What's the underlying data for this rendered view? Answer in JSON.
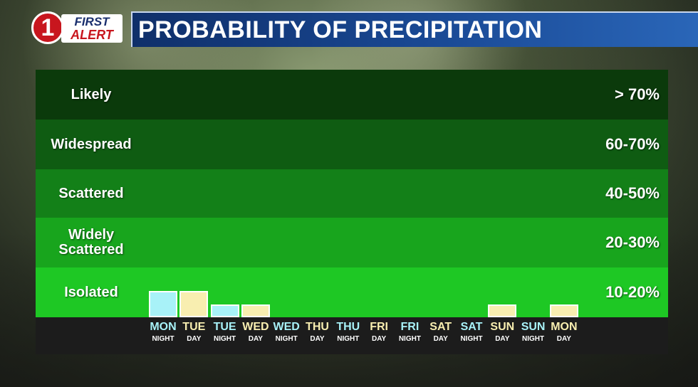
{
  "header": {
    "logo_mark": "1",
    "logo_first": "FIRST",
    "logo_alert": "ALERT",
    "title": "PROBABILITY OF PRECIPITATION"
  },
  "colors": {
    "night": "#a8f2f8",
    "day": "#f8eeb0",
    "band_likely": "#0b3a0b",
    "band_widespread": "#0f5c12",
    "band_scattered": "#138018",
    "band_widely": "#18a51d",
    "band_isolated": "#1ec824"
  },
  "chart_data": {
    "type": "bar",
    "bands": [
      {
        "label": "Likely",
        "range": "> 70%"
      },
      {
        "label": "Widespread",
        "range": "60-70%"
      },
      {
        "label": "Scattered",
        "range": "40-50%"
      },
      {
        "label": "Widely Scattered",
        "range": "20-30%"
      },
      {
        "label": "Isolated",
        "range": "10-20%"
      }
    ],
    "categories": [
      {
        "day": "MON",
        "period": "NIGHT"
      },
      {
        "day": "TUE",
        "period": "DAY"
      },
      {
        "day": "TUE",
        "period": "NIGHT"
      },
      {
        "day": "WED",
        "period": "DAY"
      },
      {
        "day": "WED",
        "period": "NIGHT"
      },
      {
        "day": "THU",
        "period": "DAY"
      },
      {
        "day": "THU",
        "period": "NIGHT"
      },
      {
        "day": "FRI",
        "period": "DAY"
      },
      {
        "day": "FRI",
        "period": "NIGHT"
      },
      {
        "day": "SAT",
        "period": "DAY"
      },
      {
        "day": "SAT",
        "period": "NIGHT"
      },
      {
        "day": "SUN",
        "period": "DAY"
      },
      {
        "day": "SUN",
        "period": "NIGHT"
      },
      {
        "day": "MON",
        "period": "DAY"
      }
    ],
    "values": [
      10,
      10,
      5,
      5,
      0,
      0,
      0,
      0,
      0,
      0,
      0,
      5,
      0,
      5
    ],
    "ylim": [
      0,
      100
    ]
  }
}
